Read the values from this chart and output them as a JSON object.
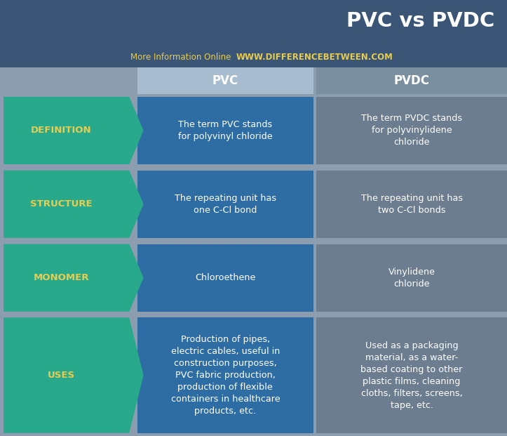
{
  "title": "PVC vs PVDC",
  "subtitle_left": "More Information Online",
  "subtitle_right": "WWW.DIFFERENCEBETWEEN.COM",
  "col1_header": "PVC",
  "col2_header": "PVDC",
  "rows": [
    {
      "label": "DEFINITION",
      "pvc": "The term PVC stands\nfor polyvinyl chloride",
      "pvdc": "The term PVDC stands\nfor polyvinylidene\nchloride"
    },
    {
      "label": "STRUCTURE",
      "pvc": "The repeating unit has\none C-Cl bond",
      "pvdc": "The repeating unit has\ntwo C-Cl bonds"
    },
    {
      "label": "MONOMER",
      "pvc": "Chloroethene",
      "pvdc": "Vinylidene\nchloride"
    },
    {
      "label": "USES",
      "pvc": "Production of pipes,\nelectric cables, useful in\nconstruction purposes,\nPVC fabric production,\nproduction of flexible\ncontainers in healthcare\nproducts, etc.",
      "pvdc": "Used as a packaging\nmaterial, as a water-\nbased coating to other\nplastic films, cleaning\ncloths, filters, screens,\ntape, etc."
    }
  ],
  "bg_color": "#8c9db0",
  "header_bg": "#3a5575",
  "arrow_color": "#29a98b",
  "pvc_cell_color": "#2e6da4",
  "pvdc_cell_color": "#6b7d8f",
  "pvc_header_color": "#a8bccf",
  "pvdc_header_color": "#7a8f9f",
  "label_text_color": "#e8cc50",
  "cell_text_color": "#ffffff",
  "header_text_color": "#ffffff",
  "title_color": "#ffffff",
  "subtitle_left_color": "#e8cc50",
  "website_color": "#e8cc50",
  "figw": 7.23,
  "figh": 6.21,
  "dpi": 100
}
